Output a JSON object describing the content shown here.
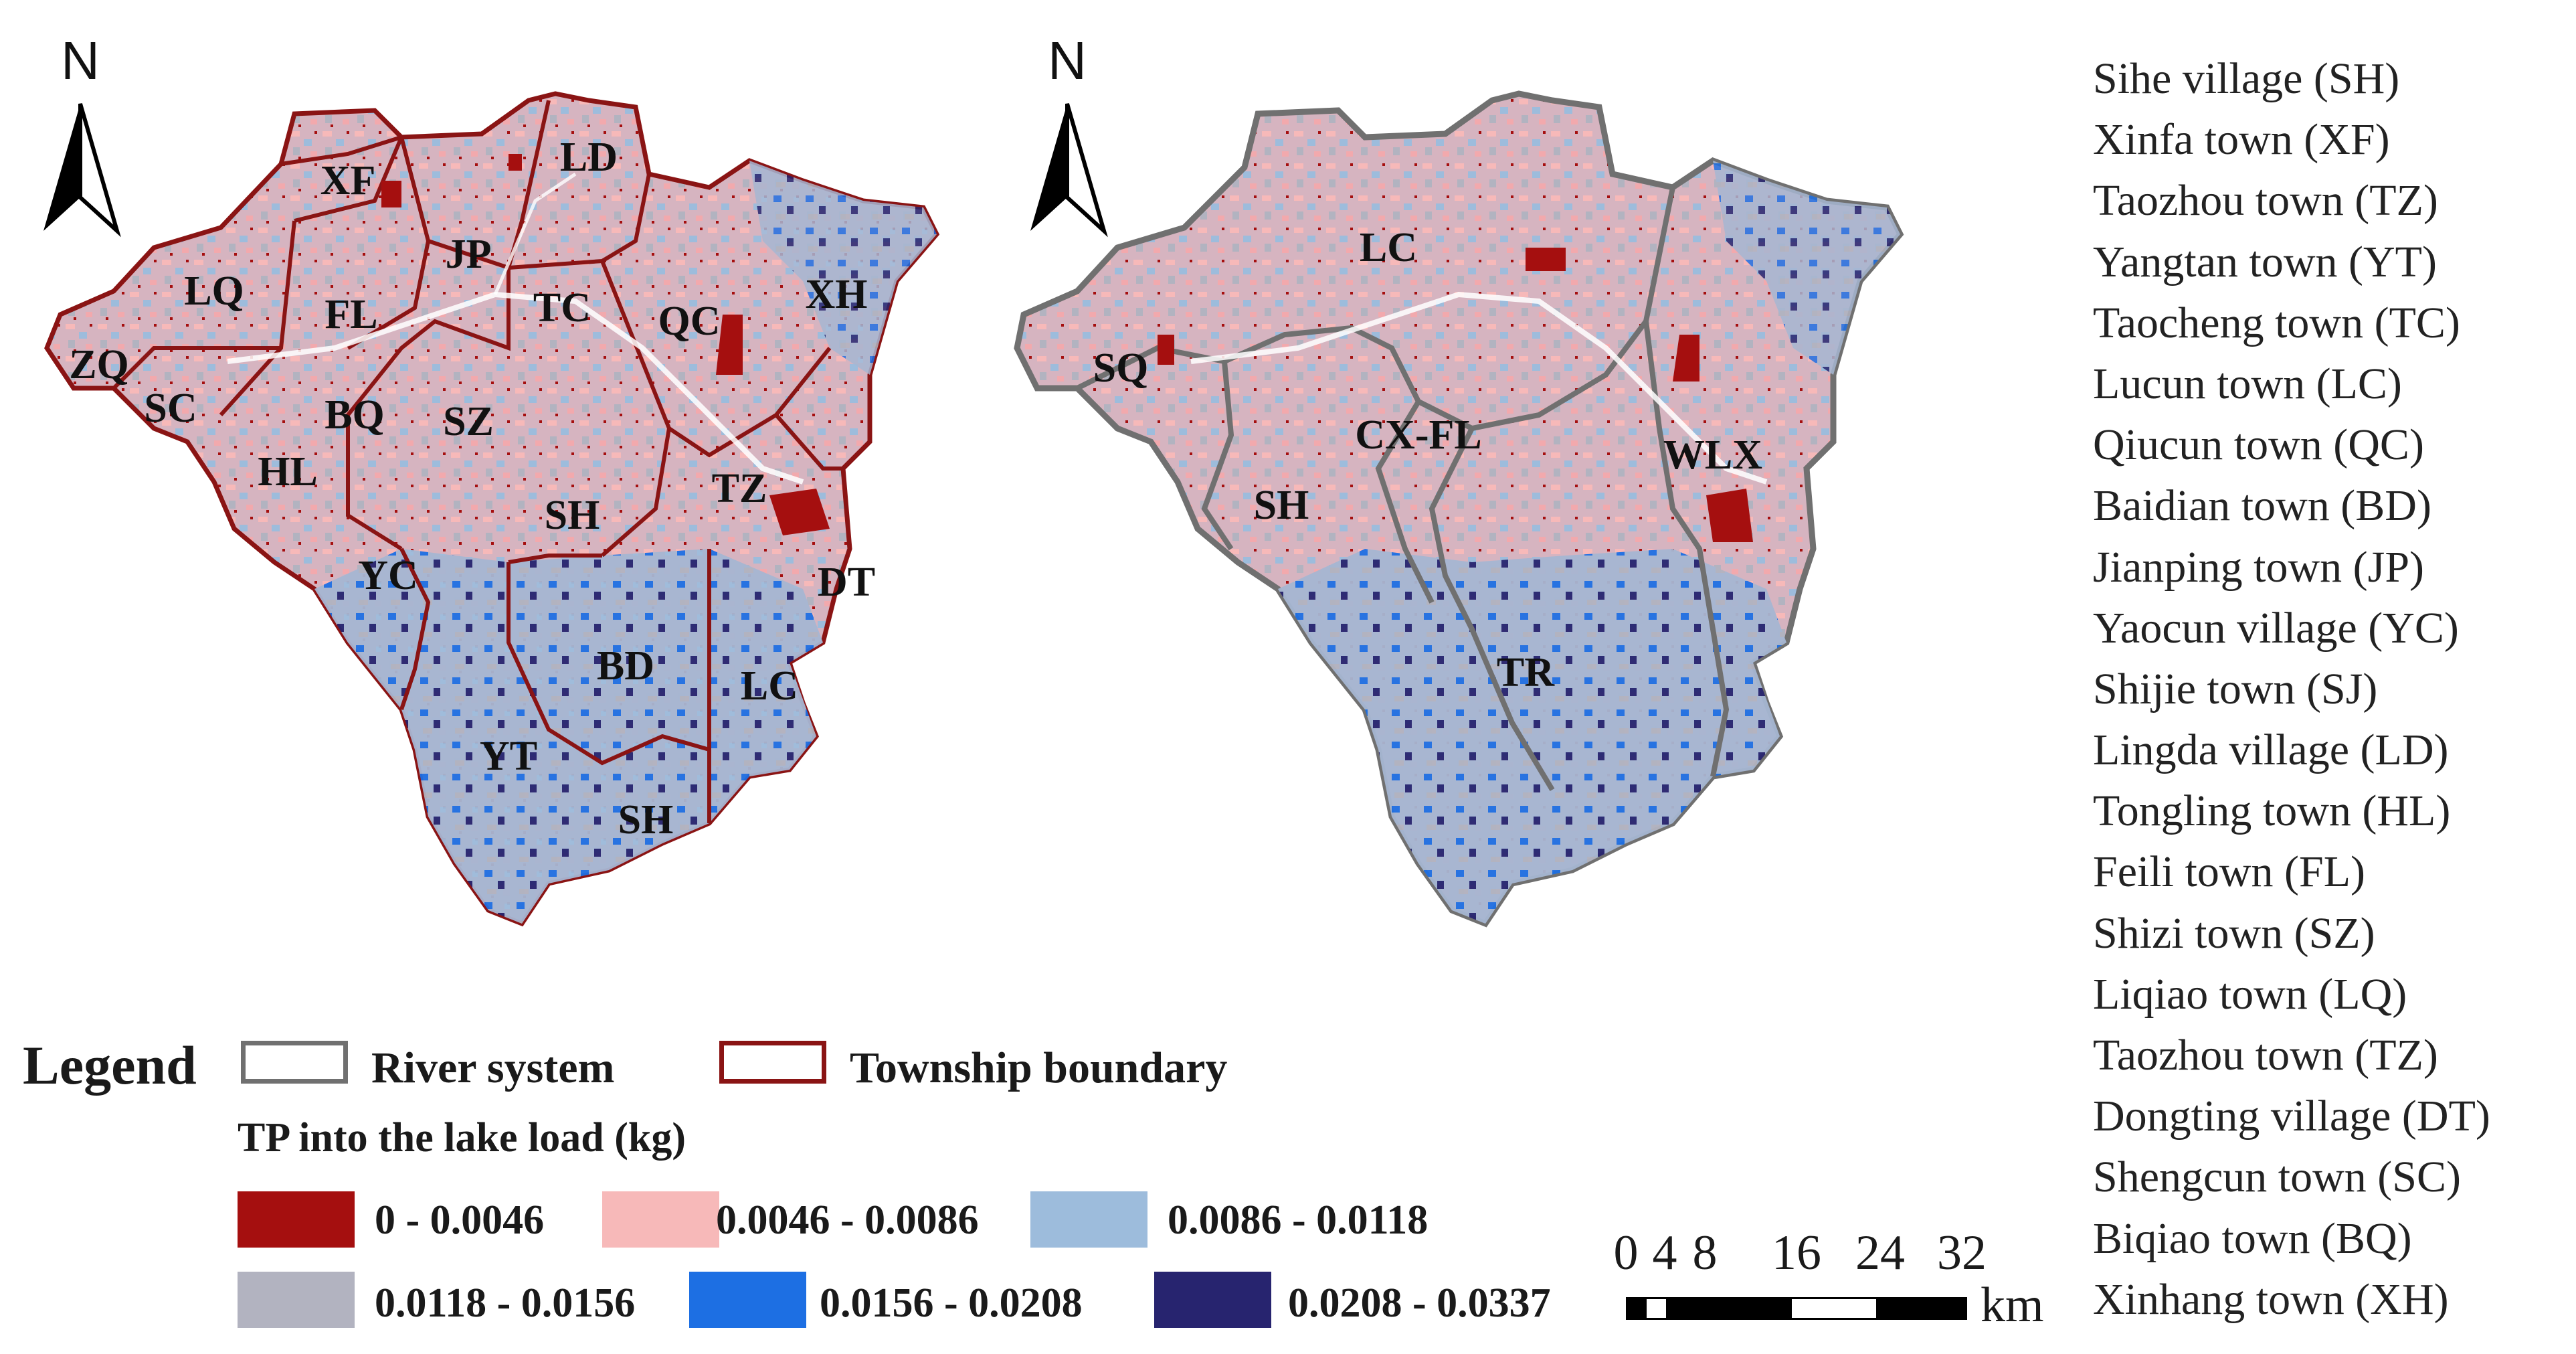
{
  "colors": {
    "class1": "#a50f0f",
    "class2": "#f7b9b9",
    "class3": "#9dbcdc",
    "class4": "#b2b3c0",
    "class5": "#1d6fe3",
    "class6": "#27246f",
    "river_system_line": "#707070",
    "township_line": "#8a1414"
  },
  "left_map": {
    "north_label": "N",
    "labels": [
      "XF",
      "LD",
      "JP",
      "LQ",
      "FL",
      "TC",
      "QC",
      "XH",
      "ZQ",
      "SC",
      "BQ",
      "SZ",
      "HL",
      "SH",
      "TZ",
      "YC",
      "DT",
      "BD",
      "LC",
      "YT",
      "SH"
    ]
  },
  "right_map": {
    "north_label": "N",
    "labels": [
      "LC",
      "SQ",
      "CX-FL",
      "WLX",
      "SH",
      "TR"
    ]
  },
  "legend": {
    "title": "Legend",
    "river_system": "River system",
    "township_boundary": "Township boundary",
    "tp_title": "TP into the lake load (kg)",
    "classes": [
      {
        "label": "0 - 0.0046",
        "color": "#a50f0f"
      },
      {
        "label": "0.0046 - 0.0086",
        "color": "#f7b9b9"
      },
      {
        "label": "0.0086 - 0.0118",
        "color": "#9dbcdc"
      },
      {
        "label": "0.0118 - 0.0156",
        "color": "#b2b3c0"
      },
      {
        "label": "0.0156 - 0.0208",
        "color": "#1d6fe3"
      },
      {
        "label": "0.0208 - 0.0337",
        "color": "#27246f"
      }
    ]
  },
  "scale_bar": {
    "ticks": [
      "0",
      "4",
      "8",
      "16",
      "24",
      "32"
    ],
    "unit": "km"
  },
  "place_index": [
    "Sihe village (SH)",
    "Xinfa town (XF)",
    "Taozhou town (TZ)",
    "Yangtan town (YT)",
    "Taocheng town (TC)",
    "Lucun town (LC)",
    "Qiucun town (QC)",
    "Baidian town (BD)",
    "Jianping town (JP)",
    "Yaocun village (YC)",
    "Shijie town (SJ)",
    "Lingda village (LD)",
    "Tongling town (HL)",
    "Feili town (FL)",
    "Shizi town (SZ)",
    "Liqiao town (LQ)",
    "Taozhou town (TZ)",
    "Dongting village (DT)",
    "Shengcun town (SC)",
    "Biqiao town (BQ)",
    "Xinhang town (XH)"
  ]
}
